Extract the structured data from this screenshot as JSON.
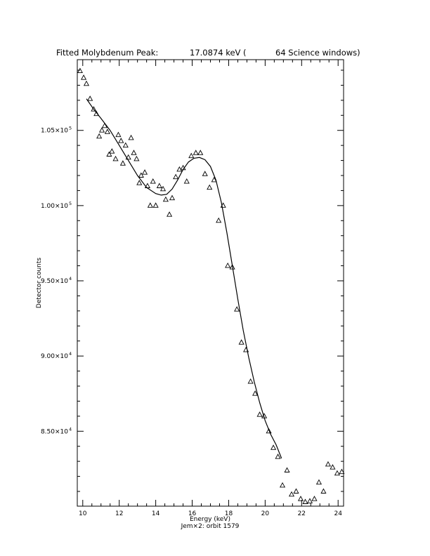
{
  "chart_data": {
    "type": "scatter",
    "title": {
      "prefix": "Fitted Molybdenum Peak:",
      "energy": "17.0874 keV (",
      "windows": "64 Science windows)"
    },
    "xlabel": "Energy (keV)",
    "ylabel": "Detector counts",
    "caption": "Jem×2: orbit 1579",
    "xlim": [
      9.7,
      24.3
    ],
    "ylim": [
      80020,
      109700
    ],
    "x_ticks": [
      {
        "value": 10,
        "label": "10"
      },
      {
        "value": 12,
        "label": "12"
      },
      {
        "value": 14,
        "label": "14"
      },
      {
        "value": 16,
        "label": "16"
      },
      {
        "value": 18,
        "label": "18"
      },
      {
        "value": 20,
        "label": "20"
      },
      {
        "value": 22,
        "label": "22"
      },
      {
        "value": 24,
        "label": "24"
      }
    ],
    "y_ticks": [
      {
        "value": 85000,
        "mantissa": "8.50×10",
        "exp": "4"
      },
      {
        "value": 90000,
        "mantissa": "9.00×10",
        "exp": "4"
      },
      {
        "value": 95000,
        "mantissa": "9.50×10",
        "exp": "4"
      },
      {
        "value": 100000,
        "mantissa": "1.00×10",
        "exp": "5"
      },
      {
        "value": 105000,
        "mantissa": "1.05×10",
        "exp": "5"
      }
    ],
    "series": [
      {
        "marker": "triangle",
        "x": [
          9.85,
          10.05,
          10.2,
          10.4,
          10.6,
          10.75,
          10.9,
          11.05,
          11.2,
          11.35,
          11.45,
          11.6,
          11.8,
          11.95,
          12.1,
          12.2,
          12.35,
          12.5,
          12.65,
          12.8,
          12.95,
          13.1,
          13.2,
          13.4,
          13.55,
          13.7,
          13.85,
          14.0,
          14.2,
          14.4,
          14.55,
          14.75,
          14.9,
          15.1,
          15.3,
          15.5,
          15.7,
          15.95,
          16.2,
          16.45,
          16.7,
          16.95,
          17.2,
          17.45,
          17.7,
          17.95,
          18.2,
          18.45,
          18.7,
          18.95,
          19.2,
          19.45,
          19.7,
          19.95,
          20.2,
          20.45,
          20.7,
          20.95,
          21.2,
          21.45,
          21.7,
          21.95,
          22.2,
          22.45,
          22.7,
          22.95,
          23.2,
          23.45,
          23.7,
          23.95,
          24.2
        ],
        "y": [
          108950,
          108500,
          108100,
          107100,
          106400,
          106100,
          104600,
          105000,
          105300,
          104900,
          103400,
          103600,
          103100,
          104700,
          104300,
          102800,
          104000,
          103200,
          104500,
          103500,
          103100,
          101500,
          102000,
          102200,
          101300,
          100000,
          101600,
          100000,
          101300,
          101100,
          100400,
          99400,
          100500,
          101900,
          102400,
          102500,
          101600,
          103300,
          103500,
          103500,
          102100,
          101200,
          101700,
          99000,
          100000,
          96000,
          95900,
          93100,
          90900,
          90400,
          88300,
          87500,
          86100,
          86000,
          85000,
          83900,
          83300,
          81400,
          82400,
          80800,
          81000,
          80500,
          80300,
          80350,
          80500,
          81600,
          81000,
          82800,
          82600,
          82200,
          82300
        ]
      }
    ],
    "fit_curve": {
      "x": [
        10.2,
        10.6,
        11.0,
        11.5,
        12.0,
        12.5,
        13.0,
        13.5,
        14.0,
        14.3,
        14.6,
        14.9,
        15.2,
        15.5,
        15.8,
        16.1,
        16.4,
        16.7,
        17.0,
        17.3,
        17.6,
        17.9,
        18.2,
        18.5,
        18.8,
        19.1,
        19.4,
        19.7,
        20.0,
        20.3,
        20.6,
        20.9
      ],
      "y": [
        107100,
        106400,
        105800,
        105000,
        104000,
        103000,
        102000,
        101200,
        100800,
        100700,
        100750,
        101100,
        101700,
        102400,
        102900,
        103150,
        103200,
        103050,
        102600,
        101700,
        100200,
        98200,
        96000,
        93800,
        91700,
        89900,
        88300,
        86900,
        85700,
        84800,
        84100,
        83200
      ]
    }
  }
}
